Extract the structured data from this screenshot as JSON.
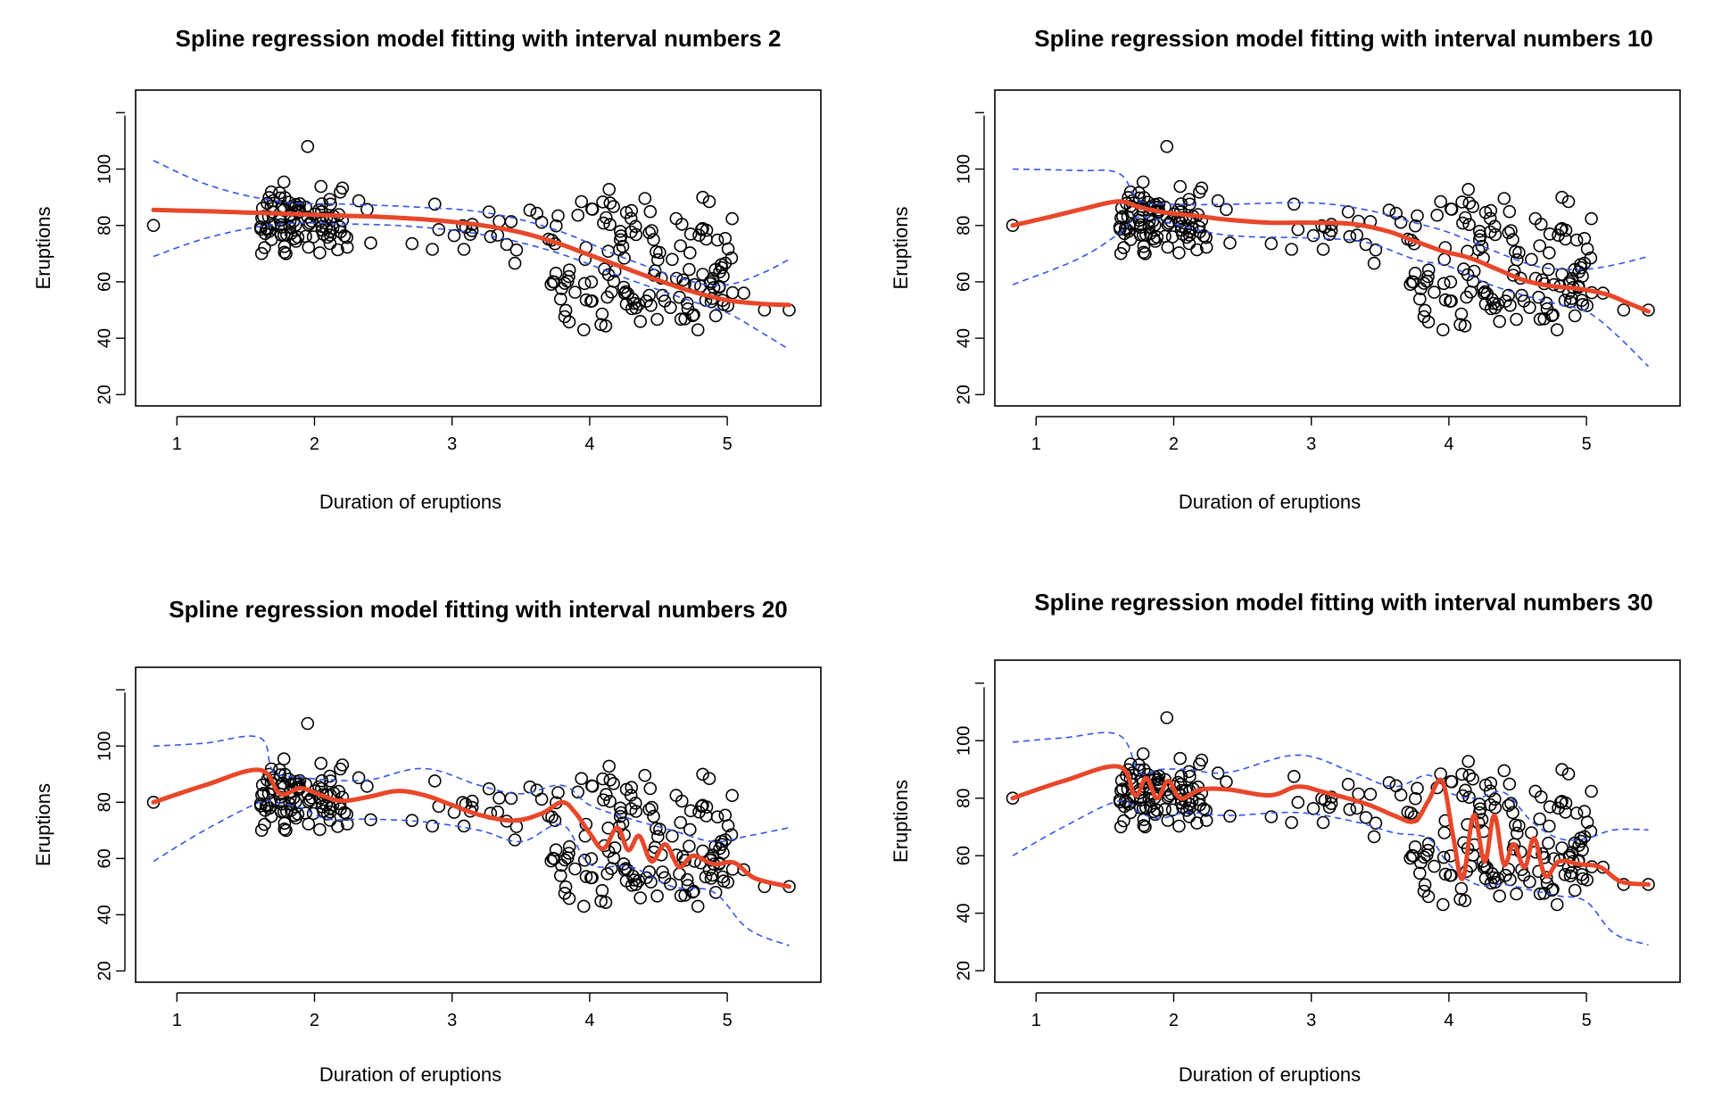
{
  "chart_data": [
    {
      "type": "scatter",
      "title": "Spline regression model fitting with interval numbers 2",
      "xlabel": "Duration of eruptions",
      "ylabel": "Eruptions",
      "xlim": [
        0.7,
        5.68
      ],
      "ylim": [
        16,
        128
      ],
      "xticks": [
        1,
        2,
        3,
        4,
        5
      ],
      "yticks": [
        20,
        40,
        60,
        80,
        100
      ],
      "grid": false,
      "legend": "none",
      "colors": {
        "points": "#000000",
        "fit": "#e8472a",
        "band": "#3355ee"
      },
      "fit": {
        "x": [
          0.83,
          1.0,
          1.25,
          1.5,
          1.75,
          2.0,
          2.25,
          2.5,
          2.75,
          3.0,
          3.25,
          3.5,
          3.75,
          4.0,
          4.25,
          4.5,
          4.75,
          5.0,
          5.25,
          5.45
        ],
        "y": [
          85.5,
          85.3,
          85.0,
          84.6,
          84.2,
          83.8,
          83.4,
          83.0,
          82.3,
          81.3,
          79.8,
          77.5,
          74.0,
          69.5,
          65.0,
          60.5,
          56.5,
          53.5,
          52.2,
          51.8
        ]
      },
      "upper": {
        "x": [
          0.83,
          1.25,
          1.75,
          2.25,
          2.75,
          3.25,
          3.75,
          4.25,
          4.75,
          5.0,
          5.25,
          5.45
        ],
        "y": [
          103,
          94,
          88.5,
          87.5,
          86.5,
          84.5,
          78.5,
          68.5,
          60.0,
          59.0,
          63.0,
          68.0
        ]
      },
      "lower": {
        "x": [
          0.83,
          1.25,
          1.75,
          2.25,
          2.75,
          3.25,
          3.75,
          4.25,
          4.75,
          5.0,
          5.25,
          5.45
        ],
        "y": [
          69,
          76,
          80.5,
          80.5,
          79.5,
          76.5,
          70.5,
          61.5,
          53.0,
          49.0,
          42.0,
          36.0
        ]
      }
    },
    {
      "type": "scatter",
      "title": "Spline regression model fitting with interval numbers 10",
      "xlabel": "Duration of eruptions",
      "ylabel": "Eruptions",
      "xlim": [
        0.7,
        5.68
      ],
      "ylim": [
        16,
        128
      ],
      "xticks": [
        1,
        2,
        3,
        4,
        5
      ],
      "yticks": [
        20,
        40,
        60,
        80,
        100
      ],
      "grid": false,
      "legend": "none",
      "colors": {
        "points": "#000000",
        "fit": "#e8472a",
        "band": "#3355ee"
      },
      "fit": {
        "x": [
          0.83,
          1.1,
          1.35,
          1.6,
          1.75,
          1.95,
          2.15,
          2.4,
          2.7,
          3.0,
          3.3,
          3.55,
          3.75,
          3.95,
          4.15,
          4.35,
          4.55,
          4.75,
          4.95,
          5.15,
          5.3,
          5.45
        ],
        "y": [
          80,
          83,
          86,
          88.5,
          86.5,
          84.5,
          83.5,
          82.0,
          81.0,
          81.0,
          80.5,
          78.0,
          74.5,
          71.0,
          68.5,
          64.5,
          60.5,
          58.5,
          57.5,
          55.5,
          52.5,
          49.5
        ]
      },
      "upper": {
        "x": [
          0.83,
          1.3,
          1.6,
          1.75,
          2.0,
          2.4,
          3.0,
          3.4,
          3.75,
          4.0,
          4.3,
          4.6,
          4.8,
          5.0,
          5.2,
          5.45
        ],
        "y": [
          100,
          99.5,
          98.5,
          89,
          87.5,
          87.5,
          88.0,
          85.5,
          81.0,
          77.5,
          71.5,
          66.0,
          64.5,
          64.5,
          66.0,
          69.0
        ]
      },
      "lower": {
        "x": [
          0.83,
          1.3,
          1.6,
          1.75,
          2.0,
          2.4,
          3.0,
          3.4,
          3.75,
          4.0,
          4.3,
          4.6,
          4.8,
          5.0,
          5.2,
          5.45
        ],
        "y": [
          59,
          68,
          77,
          83,
          80.5,
          76.5,
          75.5,
          74.0,
          68.0,
          65.5,
          59.0,
          54.5,
          52.0,
          49.5,
          42.0,
          30.0
        ]
      }
    },
    {
      "type": "scatter",
      "title": "Spline regression model fitting with interval numbers 20",
      "xlabel": "Duration of eruptions",
      "ylabel": "Eruptions",
      "xlim": [
        0.7,
        5.68
      ],
      "ylim": [
        16,
        128
      ],
      "xticks": [
        1,
        2,
        3,
        4,
        5
      ],
      "yticks": [
        20,
        40,
        60,
        80,
        100
      ],
      "grid": false,
      "legend": "none",
      "colors": {
        "points": "#000000",
        "fit": "#e8472a",
        "band": "#3355ee"
      },
      "fit": {
        "x": [
          0.83,
          1.2,
          1.6,
          1.75,
          1.9,
          2.05,
          2.2,
          2.4,
          2.6,
          2.8,
          3.0,
          3.2,
          3.45,
          3.65,
          3.8,
          3.9,
          4.0,
          4.1,
          4.2,
          4.28,
          4.36,
          4.45,
          4.55,
          4.65,
          4.75,
          4.9,
          5.05,
          5.2,
          5.45
        ],
        "y": [
          80,
          86,
          91.5,
          83,
          85,
          82.5,
          80.5,
          82,
          84,
          82.5,
          79,
          75.5,
          73.5,
          76,
          80,
          76,
          69,
          63.5,
          71,
          63,
          68,
          59,
          65,
          57,
          61,
          58,
          58.5,
          53,
          50
        ]
      },
      "upper": {
        "x": [
          0.83,
          1.2,
          1.6,
          1.7,
          1.9,
          2.1,
          2.4,
          2.8,
          3.2,
          3.5,
          3.8,
          4.0,
          4.3,
          4.6,
          4.9,
          5.15,
          5.45
        ],
        "y": [
          100,
          101,
          103,
          91,
          89,
          88,
          88,
          92,
          86,
          83,
          86,
          79,
          74,
          70,
          66,
          68,
          71
        ]
      },
      "lower": {
        "x": [
          0.83,
          1.2,
          1.6,
          1.7,
          1.9,
          2.1,
          2.4,
          2.8,
          3.2,
          3.5,
          3.8,
          4.0,
          4.3,
          4.6,
          4.9,
          5.15,
          5.45
        ],
        "y": [
          59,
          70,
          80,
          80,
          78,
          74,
          74,
          73,
          70,
          66,
          72,
          58,
          57,
          50,
          48,
          35,
          29
        ]
      }
    },
    {
      "type": "scatter",
      "title": "Spline regression model fitting with interval numbers 30",
      "xlabel": "Duration of eruptions",
      "ylabel": "Eruptions",
      "xlim": [
        0.7,
        5.68
      ],
      "ylim": [
        16,
        128
      ],
      "xticks": [
        1,
        2,
        3,
        4,
        5
      ],
      "yticks": [
        20,
        40,
        60,
        80,
        100
      ],
      "grid": false,
      "legend": "none",
      "colors": {
        "points": "#000000",
        "fit": "#e8472a",
        "band": "#3355ee"
      },
      "fit": {
        "x": [
          0.83,
          1.2,
          1.6,
          1.72,
          1.8,
          1.88,
          1.96,
          2.05,
          2.2,
          2.4,
          2.7,
          2.9,
          3.1,
          3.4,
          3.6,
          3.75,
          3.85,
          3.95,
          4.03,
          4.1,
          4.18,
          4.26,
          4.33,
          4.4,
          4.47,
          4.55,
          4.62,
          4.7,
          4.8,
          4.95,
          5.1,
          5.25,
          5.45
        ],
        "y": [
          80,
          86,
          91,
          81,
          87,
          80,
          86,
          80,
          83,
          83,
          81,
          84,
          82,
          78,
          74,
          72,
          79,
          86,
          67,
          52,
          74,
          58,
          74,
          57,
          64,
          56,
          66,
          53,
          58,
          57,
          56,
          51,
          50
        ]
      },
      "upper": {
        "x": [
          0.83,
          1.2,
          1.6,
          1.75,
          1.9,
          2.1,
          2.4,
          2.9,
          3.3,
          3.6,
          3.85,
          4.0,
          4.2,
          4.4,
          4.6,
          4.8,
          5.0,
          5.2,
          5.45
        ],
        "y": [
          99.5,
          101,
          102,
          89,
          90,
          90,
          89,
          95,
          89,
          84,
          88,
          82,
          80,
          82,
          72,
          66,
          66,
          69,
          69
        ]
      },
      "lower": {
        "x": [
          0.83,
          1.2,
          1.6,
          1.75,
          1.9,
          2.1,
          2.4,
          2.9,
          3.3,
          3.6,
          3.85,
          4.0,
          4.2,
          4.4,
          4.6,
          4.8,
          5.0,
          5.2,
          5.45
        ],
        "y": [
          60,
          70,
          79,
          75,
          73,
          75,
          74,
          75,
          72,
          68,
          66,
          57,
          50,
          50,
          48,
          46,
          44,
          33,
          29
        ]
      }
    }
  ]
}
